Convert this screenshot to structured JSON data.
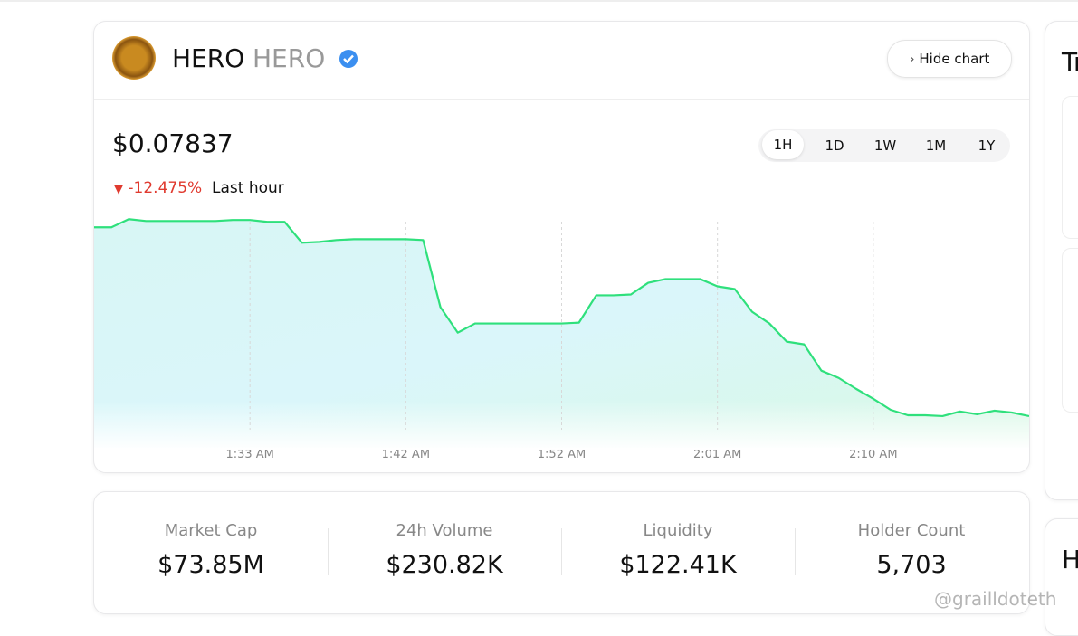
{
  "header": {
    "token_name": "HERO",
    "token_symbol": "HERO",
    "hide_chart": "Hide chart"
  },
  "price": "$0.07837",
  "change": "-12.475%",
  "change_period": "Last hour",
  "timeframes": [
    "1H",
    "1D",
    "1W",
    "1M",
    "1Y"
  ],
  "chart_data": {
    "type": "line",
    "color": "#2fe07c",
    "grid": true,
    "categories": [
      null,
      null,
      null,
      null,
      null,
      null,
      null,
      null,
      null,
      "1:33 AM",
      null,
      null,
      null,
      null,
      null,
      null,
      null,
      null,
      "1:42 AM",
      null,
      null,
      null,
      null,
      null,
      null,
      null,
      null,
      "1:52 AM",
      null,
      null,
      null,
      null,
      null,
      null,
      null,
      null,
      "2:01 AM",
      null,
      null,
      null,
      null,
      null,
      null,
      null,
      null,
      "2:10 AM",
      null,
      null,
      null,
      null,
      null,
      null,
      null,
      null,
      null
    ],
    "values": [
      0.0895,
      0.0895,
      0.08998,
      0.08987,
      0.08987,
      0.08987,
      0.08987,
      0.08987,
      0.08993,
      0.08993,
      0.08982,
      0.08982,
      0.08859,
      0.08864,
      0.08875,
      0.0888,
      0.0888,
      0.0888,
      0.0888,
      0.08875,
      0.08479,
      0.08329,
      0.08383,
      0.08383,
      0.08383,
      0.08383,
      0.08383,
      0.08383,
      0.08388,
      0.08549,
      0.08549,
      0.08554,
      0.08623,
      0.08645,
      0.08645,
      0.08645,
      0.08602,
      0.08586,
      0.08452,
      0.08383,
      0.08276,
      0.0826,
      0.08105,
      0.08062,
      0.07998,
      0.07939,
      0.07874,
      0.07842,
      0.07842,
      0.07837,
      0.07864,
      0.07848,
      0.07869,
      0.07858,
      0.07837
    ],
    "ylim": [
      0.0773,
      0.0909
    ]
  },
  "stats": [
    {
      "label": "Market Cap",
      "value": "$73.85M"
    },
    {
      "label": "24h Volume",
      "value": "$230.82K"
    },
    {
      "label": "Liquidity",
      "value": "$122.41K"
    },
    {
      "label": "Holder Count",
      "value": "5,703"
    }
  ],
  "side_titles": [
    "Tr",
    "H"
  ],
  "watermark": "@grailldoteth"
}
